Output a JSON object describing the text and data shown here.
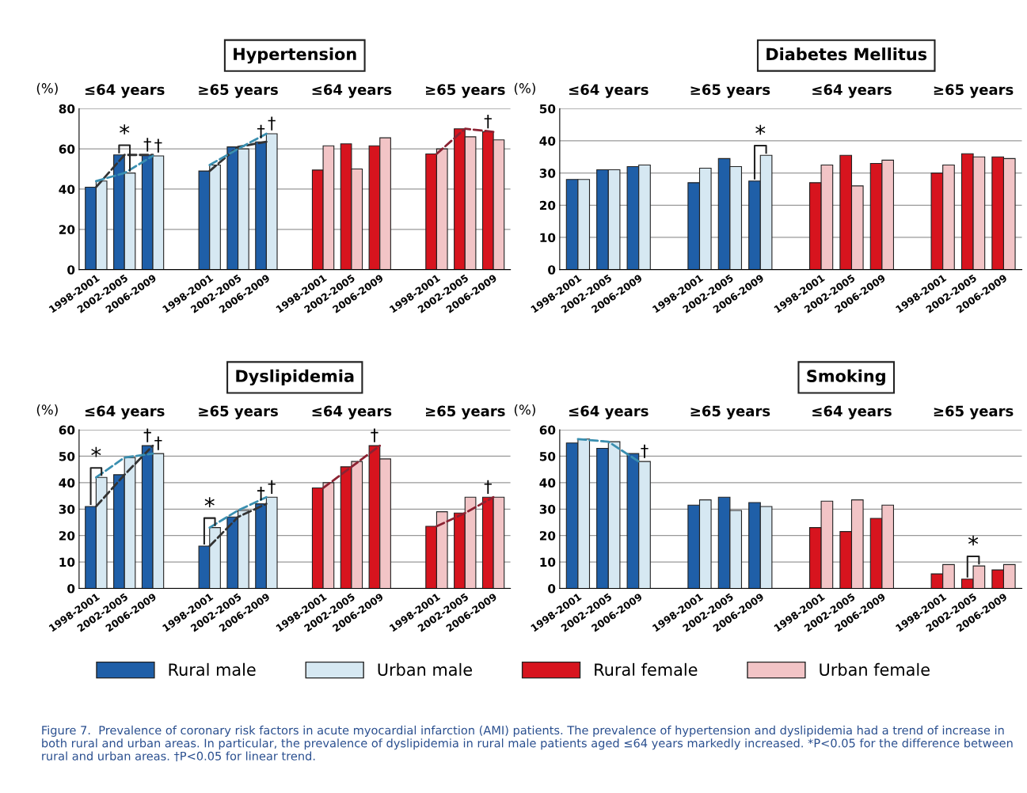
{
  "chart_data": [
    {
      "type": "bar",
      "title": "Hypertension",
      "ylabel": "(%)",
      "categories": [
        "1998-2001",
        "2002-2005",
        "2006-2009",
        null,
        "1998-2001",
        "2002-2005",
        "2006-2009",
        null,
        "1998-2001",
        "2002-2005",
        "2006-2009",
        null,
        "1998-2001",
        "2002-2005",
        "2006-2009"
      ],
      "ylim": [
        0,
        80
      ],
      "yticks": [
        0,
        20,
        40,
        60,
        80
      ],
      "grid": "y",
      "legend": "bottom",
      "series": [
        {
          "name": "Rural male",
          "color": "#1f5fa8",
          "values": [
            41,
            57,
            57,
            null,
            49,
            61,
            63.5,
            null,
            null,
            null,
            null,
            null,
            null,
            null,
            null
          ]
        },
        {
          "name": "Urban male",
          "color": "#d6e8f2",
          "values": [
            44,
            48,
            56.5,
            null,
            52,
            60,
            67.5,
            null,
            null,
            null,
            null,
            null,
            null,
            null,
            null
          ]
        },
        {
          "name": "Rural female",
          "color": "#d7141e",
          "values": [
            null,
            null,
            null,
            null,
            null,
            null,
            null,
            null,
            49.5,
            62.5,
            61.5,
            null,
            57.5,
            70,
            68.5
          ]
        },
        {
          "name": "Urban female",
          "color": "#f2c4c6",
          "values": [
            null,
            null,
            null,
            null,
            null,
            null,
            null,
            null,
            61.5,
            50,
            65.5,
            null,
            60,
            66,
            64.5
          ]
        },
        {
          "type": "line",
          "color": "#333333",
          "line_style": "dashed",
          "values": [
            41,
            57,
            57,
            null,
            null,
            null,
            null,
            null,
            null,
            null,
            null,
            null,
            null,
            null,
            null
          ]
        },
        {
          "type": "line",
          "color": "#3a8fb0",
          "line_style": "dashed",
          "values": [
            44,
            48,
            56.5,
            null,
            null,
            null,
            null,
            null,
            null,
            null,
            null,
            null,
            null,
            null,
            null
          ]
        },
        {
          "type": "line",
          "color": "#333333",
          "line_style": "dashed",
          "values": [
            null,
            null,
            null,
            null,
            49,
            61,
            63.5,
            null,
            null,
            null,
            null,
            null,
            null,
            null,
            null
          ]
        },
        {
          "type": "line",
          "color": "#3a8fb0",
          "line_style": "dashed",
          "values": [
            null,
            null,
            null,
            null,
            52,
            60,
            67.5,
            null,
            null,
            null,
            null,
            null,
            null,
            null,
            null
          ]
        },
        {
          "type": "line",
          "color": "#8b2232",
          "line_style": "dashed",
          "values": [
            null,
            null,
            null,
            null,
            null,
            null,
            null,
            null,
            null,
            null,
            null,
            null,
            57.5,
            70,
            68.5
          ]
        }
      ],
      "annotations": [
        "≤64 years",
        "≥65 years",
        "≤64 years",
        "≥65 years",
        {
          "text": "*",
          "y": 57
        },
        "†",
        "†",
        "†",
        "†",
        "†"
      ]
    },
    {
      "type": "bar",
      "title": "Diabetes Mellitus",
      "ylabel": "(%)",
      "categories": [
        "1998-2001",
        "2002-2005",
        "2006-2009",
        null,
        "1998-2001",
        "2002-2005",
        "2006-2009",
        null,
        "1998-2001",
        "2002-2005",
        "2006-2009",
        null,
        "1998-2001",
        "2002-2005",
        "2006-2009"
      ],
      "ylim": [
        0,
        50
      ],
      "yticks": [
        0,
        10,
        20,
        30,
        40,
        50
      ],
      "grid": "y",
      "series": [
        {
          "color": "#1f5fa8",
          "values": [
            28,
            31,
            32,
            null,
            27,
            34.5,
            27.5,
            null,
            null,
            null,
            null,
            null,
            null,
            null,
            null
          ]
        },
        {
          "color": "#d6e8f2",
          "values": [
            28,
            31,
            32.5,
            null,
            31.5,
            32,
            35.5,
            null,
            null,
            null,
            null,
            null,
            null,
            null,
            null
          ]
        },
        {
          "color": "#d7141e",
          "values": [
            null,
            null,
            null,
            null,
            null,
            null,
            null,
            null,
            27,
            35.5,
            33,
            null,
            30,
            36,
            35
          ]
        },
        {
          "color": "#f2c4c6",
          "values": [
            null,
            null,
            null,
            null,
            null,
            null,
            null,
            null,
            32.5,
            26,
            34,
            null,
            32.5,
            35,
            34.5
          ]
        }
      ],
      "annotations": [
        "≤64 years",
        "≥65 years",
        "≤64 years",
        "≥65 years",
        {
          "text": "*",
          "y": 35.5
        }
      ]
    },
    {
      "type": "bar",
      "title": "Dyslipidemia",
      "ylabel": "(%)",
      "categories": [
        "1998-2001",
        "2002-2005",
        "2006-2009",
        null,
        "1998-2001",
        "2002-2005",
        "2006-2009",
        null,
        "1998-2001",
        "2002-2005",
        "2006-2009",
        null,
        "1998-2001",
        "2002-2005",
        "2006-2009"
      ],
      "ylim": [
        0,
        60
      ],
      "yticks": [
        0,
        10,
        20,
        30,
        40,
        50,
        60
      ],
      "grid": "y",
      "series": [
        {
          "color": "#1f5fa8",
          "values": [
            31,
            43,
            54,
            null,
            16,
            27,
            32,
            null,
            null,
            null,
            null,
            null,
            null,
            null,
            null
          ]
        },
        {
          "color": "#d6e8f2",
          "values": [
            42,
            49.5,
            51,
            null,
            23,
            29.5,
            34.5,
            null,
            null,
            null,
            null,
            null,
            null,
            null,
            null
          ]
        },
        {
          "color": "#d7141e",
          "values": [
            null,
            null,
            null,
            null,
            null,
            null,
            null,
            null,
            38,
            46,
            54,
            null,
            23.5,
            28.5,
            34.5
          ]
        },
        {
          "color": "#f2c4c6",
          "values": [
            null,
            null,
            null,
            null,
            null,
            null,
            null,
            null,
            40,
            48,
            49,
            null,
            29,
            34.5,
            34.5
          ]
        },
        {
          "type": "line",
          "color": "#333333",
          "line_style": "dashed",
          "values": [
            31,
            43,
            54,
            null,
            null,
            null,
            null,
            null,
            null,
            null,
            null,
            null,
            null,
            null,
            null
          ]
        },
        {
          "type": "line",
          "color": "#3a8fb0",
          "line_style": "dashed",
          "values": [
            42,
            49.5,
            51,
            null,
            null,
            null,
            null,
            null,
            null,
            null,
            null,
            null,
            null,
            null,
            null
          ]
        },
        {
          "type": "line",
          "color": "#333333",
          "line_style": "dashed",
          "values": [
            null,
            null,
            null,
            null,
            16,
            27,
            32,
            null,
            null,
            null,
            null,
            null,
            null,
            null,
            null
          ]
        },
        {
          "type": "line",
          "color": "#3a8fb0",
          "line_style": "dashed",
          "values": [
            null,
            null,
            null,
            null,
            23,
            29.5,
            34.5,
            null,
            null,
            null,
            null,
            null,
            null,
            null,
            null
          ]
        },
        {
          "type": "line",
          "color": "#8b2232",
          "line_style": "dashed",
          "values": [
            null,
            null,
            null,
            null,
            null,
            null,
            null,
            null,
            38,
            46,
            54,
            null,
            null,
            null,
            null
          ]
        },
        {
          "type": "line",
          "color": "#8b2232",
          "line_style": "dashed",
          "values": [
            null,
            null,
            null,
            null,
            null,
            null,
            null,
            null,
            null,
            null,
            null,
            null,
            23.5,
            28.5,
            34.5
          ]
        }
      ],
      "annotations": [
        "≤64 years",
        "≥65 years",
        "≤64 years",
        "≥65 years",
        {
          "text": "*",
          "y": 42
        },
        "†",
        "†",
        {
          "text": "*",
          "y": 23
        },
        "†",
        "†",
        "†",
        "†"
      ]
    },
    {
      "type": "bar",
      "title": "Smoking",
      "ylabel": "(%)",
      "categories": [
        "1998-2001",
        "2002-2005",
        "2006-2009",
        null,
        "1998-2001",
        "2002-2005",
        "2006-2009",
        null,
        "1998-2001",
        "2002-2005",
        "2006-2009",
        null,
        "1998-2001",
        "2002-2005",
        "2006-2009"
      ],
      "ylim": [
        0,
        60
      ],
      "yticks": [
        0,
        10,
        20,
        30,
        40,
        50,
        60
      ],
      "grid": "y",
      "series": [
        {
          "color": "#1f5fa8",
          "values": [
            55,
            53,
            51,
            null,
            31.5,
            34.5,
            32.5,
            null,
            null,
            null,
            null,
            null,
            null,
            null,
            null
          ]
        },
        {
          "color": "#d6e8f2",
          "values": [
            56.5,
            55.5,
            48,
            null,
            33.5,
            29.5,
            31,
            null,
            null,
            null,
            null,
            null,
            null,
            null,
            null
          ]
        },
        {
          "color": "#d7141e",
          "values": [
            null,
            null,
            null,
            null,
            null,
            null,
            null,
            null,
            23,
            21.5,
            26.5,
            null,
            5.5,
            3.5,
            7
          ]
        },
        {
          "color": "#f2c4c6",
          "values": [
            null,
            null,
            null,
            null,
            null,
            null,
            null,
            null,
            33,
            33.5,
            31.5,
            null,
            9,
            8.5,
            9
          ]
        },
        {
          "type": "line",
          "color": "#3a8fb0",
          "line_style": "dashed",
          "values": [
            56.5,
            55.5,
            48,
            null,
            null,
            null,
            null,
            null,
            null,
            null,
            null,
            null,
            null,
            null,
            null
          ]
        }
      ],
      "annotations": [
        "≤64 years",
        "≥65 years",
        "≤64 years",
        "≥65 years",
        "†",
        {
          "text": "*",
          "y": 8.5
        },
        "Figure 7.  Prevalence of coronary risk factors in acute myocardial infarction (AMI) patients. The prevalence of hypertension and dyslipidemia had a trend of increase in both rural and urban areas. In particular, the prevalence of dyslipidemia in rural male patients aged ≤64 years markedly increased. *P<0.05 for the difference between rural and urban areas. †P<0.05 for linear trend."
      ]
    }
  ]
}
